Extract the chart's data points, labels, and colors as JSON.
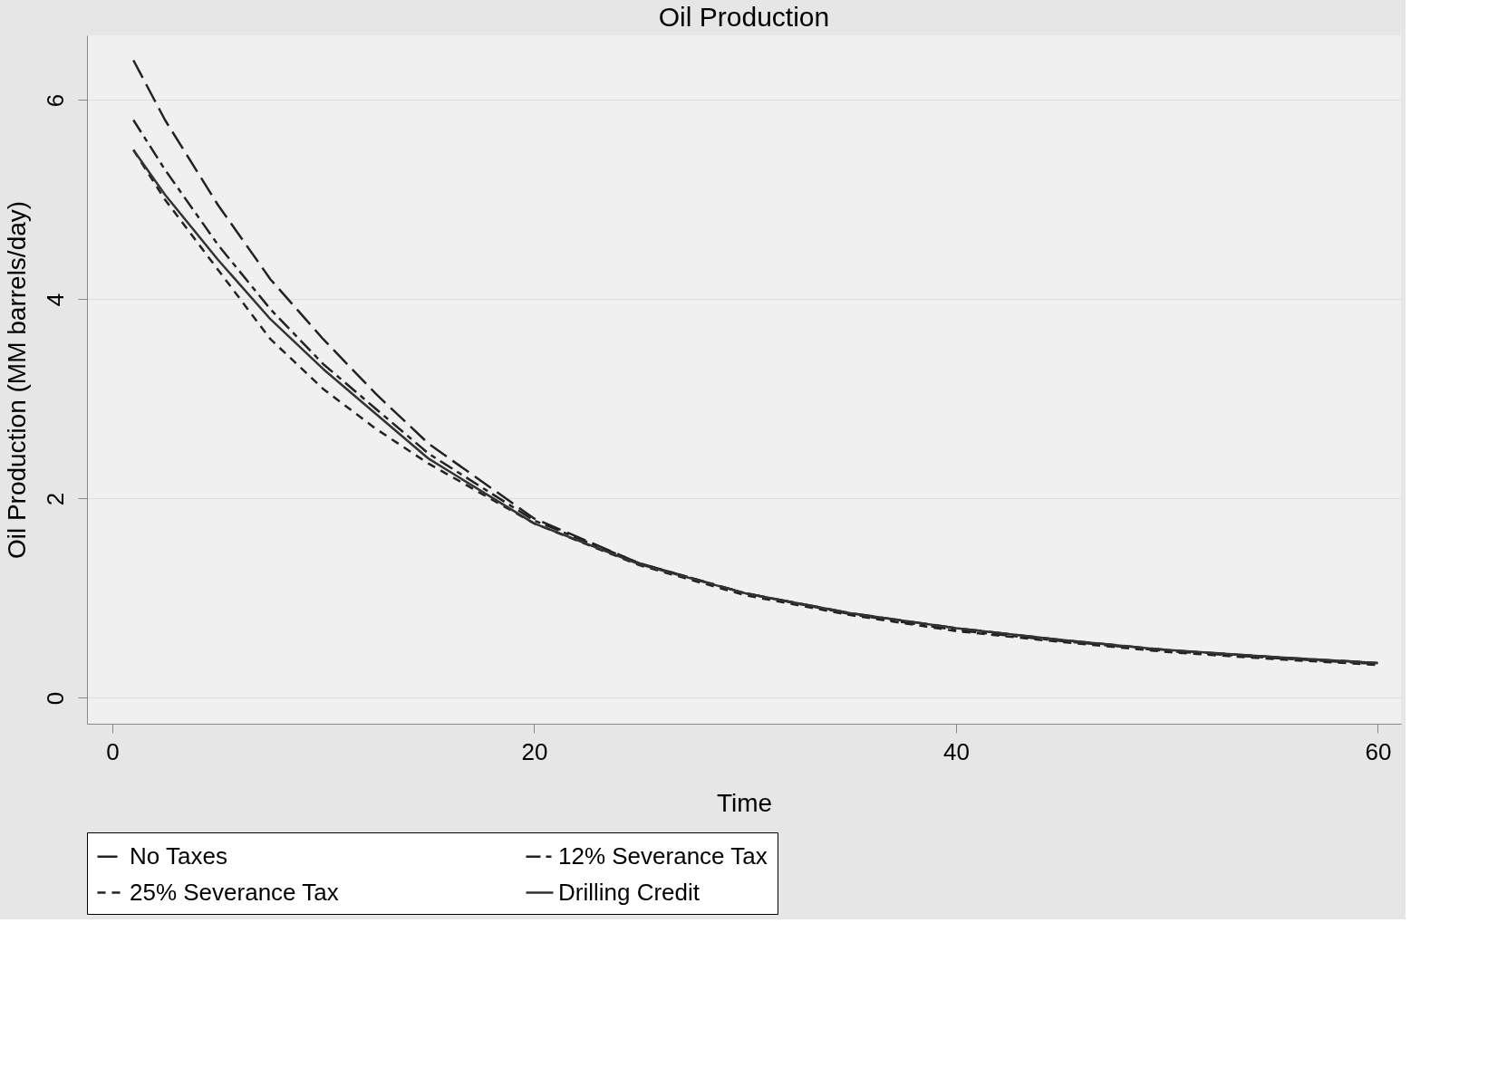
{
  "chart_data": {
    "type": "line",
    "title": "Oil Production",
    "xlabel": "Time",
    "ylabel": "Oil Production (MM barrels/day)",
    "xlim": [
      -1.2,
      61.1
    ],
    "ylim": [
      -0.26,
      6.65
    ],
    "xticks": [
      0,
      20,
      40,
      60
    ],
    "yticks": [
      0,
      2,
      4,
      6
    ],
    "grid": "y",
    "legend": "bottom",
    "marker": "none",
    "x": [
      1,
      2.5,
      5,
      7.5,
      10,
      12.5,
      15,
      20,
      25,
      30,
      35,
      40,
      45,
      50,
      55,
      60
    ],
    "series": [
      {
        "name": "No Taxes",
        "color": "#222222",
        "line_style": "dashed",
        "values": [
          6.4,
          5.8,
          4.95,
          4.2,
          3.6,
          3.05,
          2.55,
          1.8,
          1.35,
          1.05,
          0.85,
          0.7,
          0.58,
          0.48,
          0.41,
          0.35
        ]
      },
      {
        "name": "12% Severance Tax",
        "color": "#222222",
        "line_style": "dashed",
        "values": [
          5.8,
          5.3,
          4.55,
          3.9,
          3.35,
          2.9,
          2.45,
          1.78,
          1.35,
          1.05,
          0.84,
          0.68,
          0.57,
          0.47,
          0.4,
          0.34
        ]
      },
      {
        "name": "25% Severance Tax",
        "color": "#222222",
        "line_style": "dashed",
        "values": [
          5.5,
          5.0,
          4.3,
          3.6,
          3.1,
          2.7,
          2.35,
          1.75,
          1.33,
          1.03,
          0.83,
          0.67,
          0.56,
          0.46,
          0.39,
          0.33
        ]
      },
      {
        "name": "Drilling Credit",
        "color": "#333333",
        "line_style": "solid",
        "values": [
          5.5,
          5.05,
          4.4,
          3.8,
          3.3,
          2.85,
          2.4,
          1.75,
          1.34,
          1.05,
          0.85,
          0.7,
          0.58,
          0.48,
          0.41,
          0.35
        ]
      }
    ]
  }
}
